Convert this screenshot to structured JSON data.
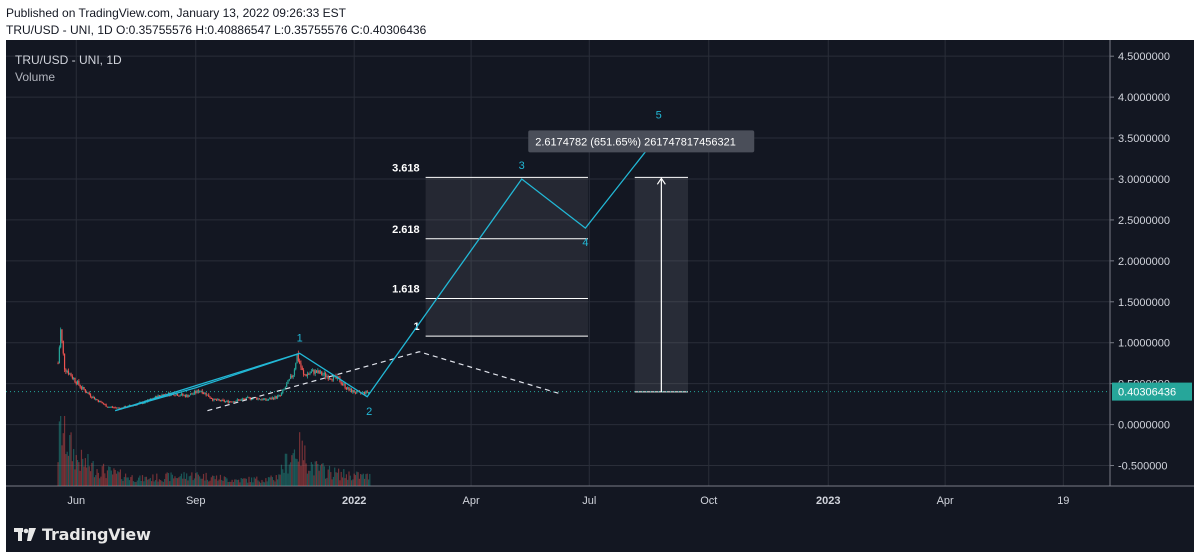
{
  "header": {
    "published": "Published on TradingView.com, January 13, 2022 09:26:33 EST",
    "ohlc": "TRU/USD - UNI, 1D O:0.35755576 H:0.40886547 L:0.35755576 C:0.40306436"
  },
  "legend": {
    "symbol": "TRU/USD - UNI, 1D",
    "volume": "Volume"
  },
  "footer": {
    "brand": "TradingView"
  },
  "colors": {
    "background": "#131722",
    "grid": "#2a2e39",
    "up": "#26a69a",
    "down": "#ef5350",
    "wave": "#22b8d6",
    "text": "#d1d4dc",
    "price_tag": "#26a69a"
  },
  "chart_data": {
    "type": "candlestick",
    "ylim": [
      -0.75,
      4.6
    ],
    "y_ticks": [
      "4.5000000",
      "4.0000000",
      "3.5000000",
      "3.0000000",
      "2.5000000",
      "2.0000000",
      "1.5000000",
      "1.0000000",
      "0.5000000",
      "0.0000000",
      "-0.500000"
    ],
    "y_tick_values": [
      4.5,
      4.0,
      3.5,
      3.0,
      2.5,
      2.0,
      1.5,
      1.0,
      0.5,
      0.0,
      -0.5
    ],
    "x_ticks": [
      {
        "label": "Jun",
        "date": "2021-06-01"
      },
      {
        "label": "Sep",
        "date": "2021-09-01"
      },
      {
        "label": "2022",
        "date": "2022-01-01"
      },
      {
        "label": "Apr",
        "date": "2022-04-01"
      },
      {
        "label": "Jul",
        "date": "2022-07-01"
      },
      {
        "label": "Oct",
        "date": "2022-10-01"
      },
      {
        "label": "2023",
        "date": "2023-01-01"
      },
      {
        "label": "Apr",
        "date": "2023-04-01"
      },
      {
        "label": "19",
        "date": "2023-07-01"
      }
    ],
    "last_price": 0.40306436,
    "last_price_label": "0.40306436",
    "price_path": [
      [
        "2021-05-18",
        0.75
      ],
      [
        "2021-05-20",
        1.15
      ],
      [
        "2021-05-23",
        0.7
      ],
      [
        "2021-05-28",
        0.6
      ],
      [
        "2021-06-05",
        0.45
      ],
      [
        "2021-06-15",
        0.32
      ],
      [
        "2021-06-25",
        0.22
      ],
      [
        "2021-07-05",
        0.2
      ],
      [
        "2021-07-15",
        0.24
      ],
      [
        "2021-07-25",
        0.28
      ],
      [
        "2021-08-05",
        0.36
      ],
      [
        "2021-08-15",
        0.38
      ],
      [
        "2021-08-25",
        0.35
      ],
      [
        "2021-09-05",
        0.42
      ],
      [
        "2021-09-15",
        0.3
      ],
      [
        "2021-09-25",
        0.28
      ],
      [
        "2021-10-05",
        0.3
      ],
      [
        "2021-10-15",
        0.33
      ],
      [
        "2021-10-25",
        0.3
      ],
      [
        "2021-11-05",
        0.35
      ],
      [
        "2021-11-15",
        0.62
      ],
      [
        "2021-11-18",
        0.85
      ],
      [
        "2021-11-23",
        0.6
      ],
      [
        "2021-12-01",
        0.65
      ],
      [
        "2021-12-10",
        0.6
      ],
      [
        "2021-12-20",
        0.55
      ],
      [
        "2021-12-28",
        0.42
      ],
      [
        "2022-01-05",
        0.38
      ],
      [
        "2022-01-13",
        0.4
      ]
    ],
    "volume_path": [
      [
        "2021-05-18",
        0.55
      ],
      [
        "2021-05-20",
        1.0
      ],
      [
        "2021-05-25",
        0.75
      ],
      [
        "2021-06-01",
        0.45
      ],
      [
        "2021-06-15",
        0.3
      ],
      [
        "2021-07-01",
        0.2
      ],
      [
        "2021-07-20",
        0.12
      ],
      [
        "2021-08-10",
        0.15
      ],
      [
        "2021-09-01",
        0.18
      ],
      [
        "2021-10-01",
        0.1
      ],
      [
        "2021-11-01",
        0.12
      ],
      [
        "2021-11-18",
        0.65
      ],
      [
        "2021-12-01",
        0.3
      ],
      [
        "2021-12-20",
        0.2
      ],
      [
        "2022-01-13",
        0.15
      ]
    ],
    "elliott_wave": {
      "points": [
        {
          "label": "",
          "date": "2021-07-01",
          "value": 0.17
        },
        {
          "label": "1",
          "date": "2021-11-20",
          "value": 0.87
        },
        {
          "label": "2",
          "date": "2022-01-11",
          "value": 0.34
        },
        {
          "label": "3",
          "date": "2022-05-10",
          "value": 3.0
        },
        {
          "label": "4",
          "date": "2022-06-28",
          "value": 2.4
        },
        {
          "label": "5",
          "date": "2022-08-25",
          "value": 3.57
        }
      ]
    },
    "trend_lines": [
      {
        "from": [
          "2021-07-01",
          0.17
        ],
        "to": [
          "2021-09-01",
          0.45
        ]
      },
      {
        "from": [
          "2021-09-01",
          0.45
        ],
        "to": [
          "2021-11-20",
          0.87
        ]
      }
    ],
    "dashed_line": [
      {
        "date": "2021-09-10",
        "value": 0.17
      },
      {
        "date": "2022-02-20",
        "value": 0.89
      },
      {
        "date": "2022-06-10",
        "value": 0.37
      }
    ],
    "fib_levels": [
      {
        "label": "1",
        "value": 1.08
      },
      {
        "label": "1.618",
        "value": 1.54
      },
      {
        "label": "2.618",
        "value": 2.27
      },
      {
        "label": "3.618",
        "value": 3.02
      }
    ],
    "fib_range": {
      "from_date": "2022-02-25",
      "to_date": "2022-06-30"
    },
    "measure": {
      "from_date": "2022-08-05",
      "to_date": "2022-09-15",
      "from_value": 0.4,
      "to_value": 3.02,
      "label": "2.6174782 (651.65%) 261747817456321"
    }
  }
}
